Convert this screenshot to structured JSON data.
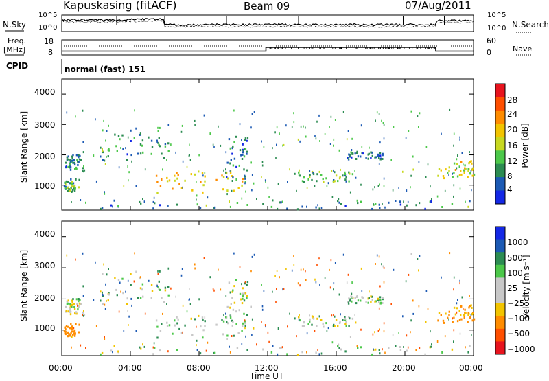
{
  "header": {
    "station": "Kapuskasing (fitACF)",
    "beam": "Beam 09",
    "date": "07/Aug/2011"
  },
  "noise_panel": {
    "left_label": "N.Sky",
    "right_label": "N.Search",
    "left_ticks": [
      "10^5",
      "10^0"
    ],
    "right_ticks": [
      "10^5",
      "10^0"
    ]
  },
  "freq_panel": {
    "left_label_line1": "Freq.",
    "left_label_line2": "[MHz]",
    "left_ticks": [
      "18",
      "8"
    ],
    "right_label": "Nave",
    "right_ticks": [
      "60",
      "0"
    ]
  },
  "cpid_panel": {
    "label": "CPID",
    "mode": "normal (fast) 151"
  },
  "power_panel": {
    "ylabel": "Slant Range [km]",
    "yticks": [
      "4000",
      "3000",
      "2000",
      "1000"
    ],
    "colorbar_title": "Power [dB]",
    "colorbar_ticks": [
      "28",
      "24",
      "20",
      "16",
      "12",
      "8",
      "4"
    ],
    "colors": [
      "#e8141e",
      "#ff4f00",
      "#ff8c00",
      "#f2c400",
      "#c8d820",
      "#4cc84a",
      "#2c8c52",
      "#1c5ab4",
      "#1428e6"
    ]
  },
  "velocity_panel": {
    "ylabel": "Slant Range [km]",
    "yticks": [
      "4000",
      "3000",
      "2000",
      "1000"
    ],
    "colorbar_title": "Velocity [m s⁻¹]",
    "colorbar_ticks": [
      "1000",
      "500",
      "100",
      "25",
      "−25",
      "−100",
      "−500",
      "−1000"
    ],
    "colors": [
      "#1428e6",
      "#1c5ab4",
      "#2c8c52",
      "#4cc84a",
      "#c8c8c8",
      "#c8c8c8",
      "#f2c400",
      "#ff8c00",
      "#ff4f00",
      "#e8141e"
    ]
  },
  "x_axis": {
    "label": "Time UT",
    "ticks": [
      "00:00",
      "04:00",
      "08:00",
      "12:00",
      "16:00",
      "20:00",
      "00:00"
    ]
  },
  "chart_data": {
    "type": "heatmap",
    "title": "Kapuskasing (fitACF)  Beam 09  07/Aug/2011",
    "xlabel": "Time UT",
    "ylabel": "Slant Range [km]",
    "xlim": [
      "00:00",
      "24:00"
    ],
    "ylim": [
      180,
      4500
    ],
    "power_scale_db": [
      0,
      30
    ],
    "velocity_scale_ms": [
      -1000,
      1000
    ],
    "frequency_mhz": [
      {
        "t0": 0,
        "t1": 11.9,
        "value": 10.5
      },
      {
        "t0": 11.9,
        "t1": 21.8,
        "value": 13
      },
      {
        "t0": 21.8,
        "t1": 24,
        "value": 10.5
      }
    ],
    "echo_regions": [
      {
        "t0": 0.1,
        "t1": 1.2,
        "r0": 1500,
        "r1": 2000,
        "power_db": 8,
        "velocity_ms": -25
      },
      {
        "t0": 0.1,
        "t1": 1.0,
        "r0": 800,
        "r1": 1200,
        "power_db": 10,
        "velocity_ms": -300
      },
      {
        "t0": 2.2,
        "t1": 6.2,
        "r0": 1800,
        "r1": 2900,
        "power_db": 8,
        "velocity_ms": 0
      },
      {
        "t0": 5.3,
        "t1": 10.6,
        "r0": 750,
        "r1": 1450,
        "power_db": 18,
        "velocity_ms": 25
      },
      {
        "t0": 9.5,
        "t1": 10.8,
        "r0": 1100,
        "r1": 2700,
        "power_db": 7,
        "velocity_ms": 0
      },
      {
        "t0": 13.5,
        "t1": 17.0,
        "r0": 1100,
        "r1": 1450,
        "power_db": 10,
        "velocity_ms": 0
      },
      {
        "t0": 16.6,
        "t1": 18.7,
        "r0": 1850,
        "r1": 2100,
        "power_db": 6,
        "velocity_ms": 0
      },
      {
        "t0": 21.8,
        "t1": 24.0,
        "r0": 1200,
        "r1": 1800,
        "power_db": 16,
        "velocity_ms": -200
      },
      {
        "t0": 0.0,
        "t1": 24.0,
        "r0": 200,
        "r1": 500,
        "power_db": 6,
        "velocity_ms": 0
      }
    ]
  }
}
